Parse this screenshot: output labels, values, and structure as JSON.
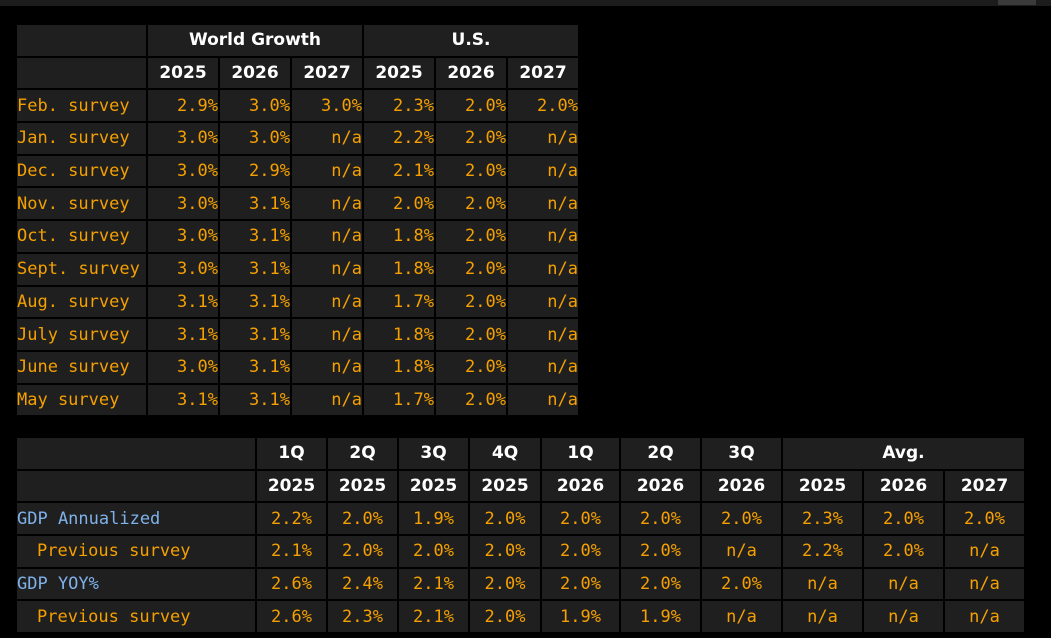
{
  "survey_table": {
    "group_headers": [
      {
        "label": "World Growth",
        "span": 3
      },
      {
        "label": "U.S.",
        "span": 3
      }
    ],
    "years": [
      "2025",
      "2026",
      "2027",
      "2025",
      "2026",
      "2027"
    ],
    "rows": [
      {
        "label": "Feb. survey",
        "values": [
          "2.9%",
          "3.0%",
          "3.0%",
          "2.3%",
          "2.0%",
          "2.0%"
        ]
      },
      {
        "label": "Jan. survey",
        "values": [
          "3.0%",
          "3.0%",
          "n/a",
          "2.2%",
          "2.0%",
          "n/a"
        ]
      },
      {
        "label": "Dec. survey",
        "values": [
          "3.0%",
          "2.9%",
          "n/a",
          "2.1%",
          "2.0%",
          "n/a"
        ]
      },
      {
        "label": "Nov. survey",
        "values": [
          "3.0%",
          "3.1%",
          "n/a",
          "2.0%",
          "2.0%",
          "n/a"
        ]
      },
      {
        "label": "Oct. survey",
        "values": [
          "3.0%",
          "3.1%",
          "n/a",
          "1.8%",
          "2.0%",
          "n/a"
        ]
      },
      {
        "label": "Sept. survey",
        "values": [
          "3.0%",
          "3.1%",
          "n/a",
          "1.8%",
          "2.0%",
          "n/a"
        ]
      },
      {
        "label": "Aug. survey",
        "values": [
          "3.1%",
          "3.1%",
          "n/a",
          "1.7%",
          "2.0%",
          "n/a"
        ]
      },
      {
        "label": "July survey",
        "values": [
          "3.1%",
          "3.1%",
          "n/a",
          "1.8%",
          "2.0%",
          "n/a"
        ]
      },
      {
        "label": "June survey",
        "values": [
          "3.0%",
          "3.1%",
          "n/a",
          "1.8%",
          "2.0%",
          "n/a"
        ]
      },
      {
        "label": "May survey",
        "values": [
          "3.1%",
          "3.1%",
          "n/a",
          "1.7%",
          "2.0%",
          "n/a"
        ]
      }
    ]
  },
  "gdp_table": {
    "col_headers_top": [
      "1Q",
      "2Q",
      "3Q",
      "4Q",
      "1Q",
      "2Q",
      "3Q"
    ],
    "avg_label": "Avg.",
    "col_headers_bottom": [
      "2025",
      "2025",
      "2025",
      "2025",
      "2026",
      "2026",
      "2026",
      "2025",
      "2026",
      "2027"
    ],
    "rows": [
      {
        "label": "GDP Annualized",
        "style": "blue",
        "values": [
          "2.2%",
          "2.0%",
          "1.9%",
          "2.0%",
          "2.0%",
          "2.0%",
          "2.0%",
          "2.3%",
          "2.0%",
          "2.0%"
        ]
      },
      {
        "label": "Previous survey",
        "style": "sub",
        "values": [
          "2.1%",
          "2.0%",
          "2.0%",
          "2.0%",
          "2.0%",
          "2.0%",
          "n/a",
          "2.2%",
          "2.0%",
          "n/a"
        ]
      },
      {
        "label": "GDP YOY%",
        "style": "blue",
        "values": [
          "2.6%",
          "2.4%",
          "2.1%",
          "2.0%",
          "2.0%",
          "2.0%",
          "2.0%",
          "n/a",
          "n/a",
          "n/a"
        ]
      },
      {
        "label": "Previous survey",
        "style": "sub",
        "values": [
          "2.6%",
          "2.3%",
          "2.1%",
          "2.0%",
          "1.9%",
          "1.9%",
          "n/a",
          "n/a",
          "n/a",
          "n/a"
        ]
      }
    ]
  },
  "colors": {
    "background": "#000000",
    "cell": "#1f1f1f",
    "value_text": "#f5a000",
    "header_text": "#ffffff",
    "row_label_blue": "#7fb2ea"
  }
}
